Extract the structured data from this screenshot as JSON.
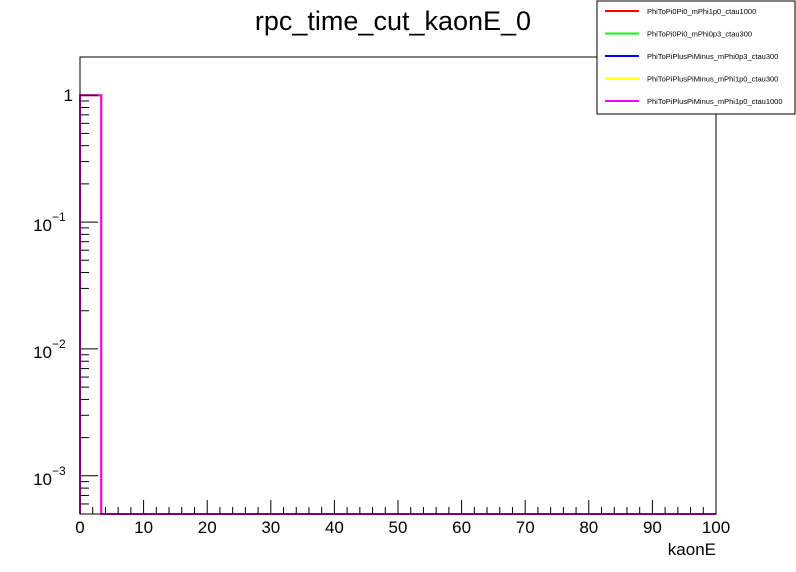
{
  "chart_data": {
    "type": "histogram",
    "title": "rpc_time_cut_kaonE_0",
    "xlabel": "kaonE",
    "ylabel": "",
    "xlim": [
      0,
      100
    ],
    "ylim": [
      0.0005,
      2
    ],
    "log_y": true,
    "grid": false,
    "legend_position": "top-right",
    "x_ticks": [
      0,
      10,
      20,
      30,
      40,
      50,
      60,
      70,
      80,
      90,
      100
    ],
    "x_tick_labels": [
      "0",
      "10",
      "20",
      "30",
      "40",
      "50",
      "60",
      "70",
      "80",
      "90",
      "100"
    ],
    "y_ticks": [
      {
        "value": 1,
        "base": "1",
        "exp": ""
      },
      {
        "value": 0.1,
        "base": "10",
        "exp": "−1"
      },
      {
        "value": 0.01,
        "base": "10",
        "exp": "−2"
      },
      {
        "value": 0.001,
        "base": "10",
        "exp": "−3"
      }
    ],
    "bin_edges": [
      0,
      3.33
    ],
    "series": [
      {
        "name": "PhiToPi0Pi0_mPhi1p0_ctau1000",
        "color": "#ff0000",
        "values": [
          1
        ]
      },
      {
        "name": "PhiToPi0Pi0_mPhi0p3_ctau300",
        "color": "#00ff00",
        "values": [
          1
        ]
      },
      {
        "name": "PhiToPiPlusPiMinus_mPhi0p3_ctau300",
        "color": "#0000ff",
        "values": [
          1
        ]
      },
      {
        "name": "PhiToPiPlusPiMinus_mPhi1p0_ctau300",
        "color": "#ffff00",
        "values": [
          1
        ]
      },
      {
        "name": "PhiToPiPlusPiMinus_mPhi1p0_ctau1000",
        "color": "#ff00ff",
        "values": [
          1
        ]
      }
    ]
  }
}
